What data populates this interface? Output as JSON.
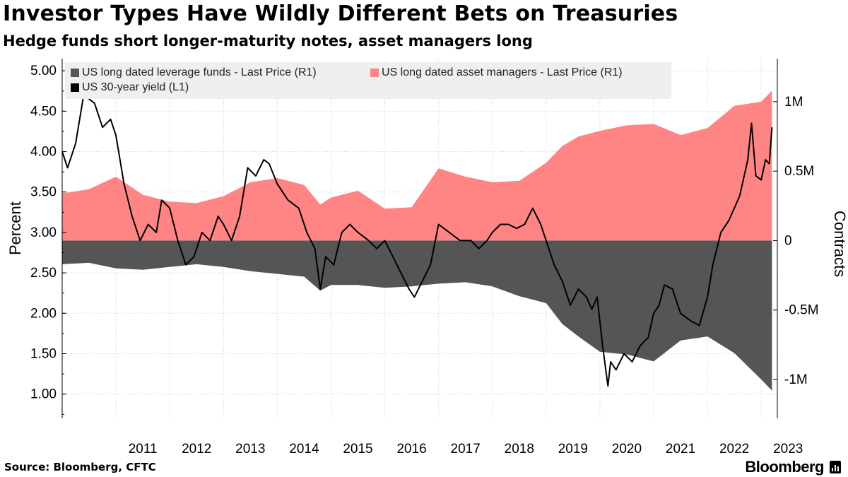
{
  "header": {
    "title": "Investor Types Have Wildly Different Bets on Treasuries",
    "subtitle": "Hedge funds short longer-maturity notes, asset managers long"
  },
  "footer": {
    "source": "Source: Bloomberg, CFTC",
    "brand": "Bloomberg"
  },
  "colors": {
    "leverage_funds": "#555555",
    "asset_managers": "#ff8585",
    "yield": "#000000"
  },
  "chart_data": {
    "type": "area",
    "title": "Investor Types Have Wildly Different Bets on Treasuries",
    "subtitle": "Hedge funds short longer-maturity notes, asset managers long",
    "ylabel_left": "Percent",
    "ylabel_right": "Contracts",
    "ylim_left": [
      0.7,
      5.15
    ],
    "ylim_right": [
      -1280000,
      1310000
    ],
    "yticks_left": [
      "5.00",
      "4.50",
      "4.00",
      "3.50",
      "3.00",
      "2.50",
      "2.00",
      "1.50",
      "1.00"
    ],
    "yticks_left_values": [
      5.0,
      4.5,
      4.0,
      3.5,
      3.0,
      2.5,
      2.0,
      1.5,
      1.0
    ],
    "yticks_right": [
      "1M",
      "0.5M",
      "0",
      "-0.5M",
      "-1M"
    ],
    "yticks_right_values": [
      1000000,
      500000,
      0,
      -500000,
      -1000000
    ],
    "xlim": [
      2010.0,
      2023.3
    ],
    "xticks": [
      "2011",
      "2012",
      "2013",
      "2014",
      "2015",
      "2016",
      "2017",
      "2018",
      "2019",
      "2020",
      "2021",
      "2022",
      "2023"
    ],
    "grid": true,
    "legend_position": "top-left",
    "series": [
      {
        "name": "US long dated leverage funds - Last Price (R1)",
        "axis": "right",
        "style": "area",
        "x": [
          2010.0,
          2010.5,
          2011.0,
          2011.5,
          2012.0,
          2012.5,
          2013.0,
          2013.5,
          2014.0,
          2014.5,
          2014.8,
          2015.0,
          2015.5,
          2016.0,
          2016.5,
          2017.0,
          2017.5,
          2018.0,
          2018.5,
          2019.0,
          2019.3,
          2019.6,
          2020.0,
          2020.5,
          2021.0,
          2021.5,
          2022.0,
          2022.5,
          2023.0,
          2023.2
        ],
        "values": [
          -170000,
          -160000,
          -200000,
          -210000,
          -190000,
          -170000,
          -190000,
          -220000,
          -240000,
          -260000,
          -360000,
          -320000,
          -320000,
          -340000,
          -330000,
          -310000,
          -300000,
          -330000,
          -400000,
          -450000,
          -600000,
          -690000,
          -800000,
          -820000,
          -870000,
          -720000,
          -690000,
          -810000,
          -1000000,
          -1080000
        ]
      },
      {
        "name": "US long dated asset managers - Last Price (R1)",
        "axis": "right",
        "style": "area",
        "x": [
          2010.0,
          2010.5,
          2011.0,
          2011.5,
          2012.0,
          2012.5,
          2013.0,
          2013.5,
          2014.0,
          2014.5,
          2014.8,
          2015.0,
          2015.5,
          2016.0,
          2016.5,
          2017.0,
          2017.5,
          2018.0,
          2018.5,
          2019.0,
          2019.3,
          2019.6,
          2020.0,
          2020.5,
          2021.0,
          2021.5,
          2022.0,
          2022.5,
          2023.0,
          2023.2
        ],
        "values": [
          340000,
          370000,
          460000,
          330000,
          280000,
          270000,
          320000,
          420000,
          450000,
          400000,
          260000,
          310000,
          360000,
          230000,
          240000,
          520000,
          460000,
          420000,
          430000,
          560000,
          680000,
          750000,
          790000,
          830000,
          840000,
          760000,
          810000,
          970000,
          1000000,
          1080000
        ]
      },
      {
        "name": "US 30-year yield (L1)",
        "axis": "left",
        "style": "line",
        "x": [
          2010.0,
          2010.05,
          2010.1,
          2010.25,
          2010.4,
          2010.6,
          2010.75,
          2010.9,
          2011.0,
          2011.15,
          2011.3,
          2011.45,
          2011.6,
          2011.75,
          2011.85,
          2012.0,
          2012.15,
          2012.3,
          2012.45,
          2012.6,
          2012.75,
          2012.9,
          2013.0,
          2013.15,
          2013.3,
          2013.45,
          2013.6,
          2013.75,
          2013.85,
          2014.0,
          2014.2,
          2014.4,
          2014.55,
          2014.7,
          2014.8,
          2014.9,
          2015.05,
          2015.2,
          2015.35,
          2015.5,
          2015.7,
          2015.85,
          2016.0,
          2016.15,
          2016.3,
          2016.45,
          2016.55,
          2016.7,
          2016.85,
          2017.0,
          2017.2,
          2017.4,
          2017.6,
          2017.75,
          2017.9,
          2018.0,
          2018.15,
          2018.3,
          2018.45,
          2018.6,
          2018.75,
          2018.9,
          2019.0,
          2019.15,
          2019.3,
          2019.45,
          2019.6,
          2019.75,
          2019.85,
          2019.95,
          2020.05,
          2020.15,
          2020.2,
          2020.3,
          2020.45,
          2020.6,
          2020.75,
          2020.9,
          2021.0,
          2021.1,
          2021.2,
          2021.35,
          2021.5,
          2021.6,
          2021.7,
          2021.85,
          2022.0,
          2022.1,
          2022.25,
          2022.4,
          2022.5,
          2022.6,
          2022.75,
          2022.82,
          2022.9,
          2023.0,
          2023.08,
          2023.15,
          2023.2
        ],
        "values": [
          4.0,
          3.9,
          3.8,
          4.1,
          4.7,
          4.6,
          4.3,
          4.4,
          4.2,
          3.6,
          3.2,
          2.9,
          3.1,
          3.0,
          3.4,
          3.3,
          2.9,
          2.6,
          2.7,
          3.0,
          2.9,
          3.2,
          3.1,
          2.9,
          3.2,
          3.8,
          3.7,
          3.9,
          3.85,
          3.6,
          3.4,
          3.3,
          3.0,
          2.8,
          2.3,
          2.7,
          2.6,
          3.0,
          3.1,
          3.0,
          2.9,
          2.8,
          2.9,
          2.7,
          2.5,
          2.3,
          2.2,
          2.4,
          2.6,
          3.1,
          3.0,
          2.9,
          2.9,
          2.8,
          2.9,
          3.0,
          3.1,
          3.1,
          3.05,
          3.1,
          3.3,
          3.1,
          2.9,
          2.6,
          2.4,
          2.1,
          2.3,
          2.2,
          2.05,
          2.2,
          1.6,
          1.1,
          1.4,
          1.3,
          1.5,
          1.4,
          1.6,
          1.7,
          2.0,
          2.1,
          2.35,
          2.3,
          2.0,
          1.95,
          1.9,
          1.85,
          2.2,
          2.6,
          3.0,
          3.15,
          3.3,
          3.45,
          3.9,
          4.35,
          3.7,
          3.65,
          3.9,
          3.85,
          4.3
        ]
      }
    ]
  }
}
